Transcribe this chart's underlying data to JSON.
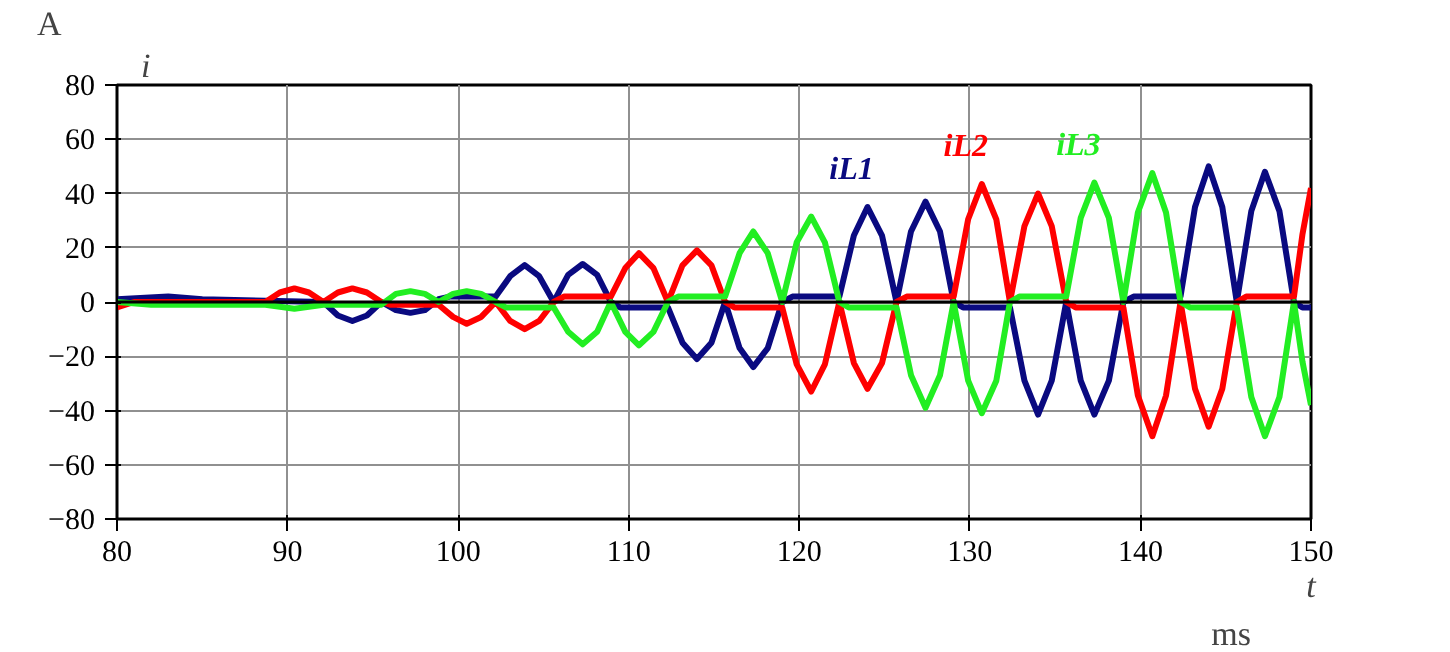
{
  "chart_data": {
    "type": "line",
    "xlabel": "t",
    "ylabel": "i",
    "annotations": [
      "A",
      "ms"
    ],
    "xlim": [
      80,
      150
    ],
    "ylim": [
      -80,
      80
    ],
    "xticks": [
      80,
      90,
      100,
      110,
      120,
      130,
      140,
      150
    ],
    "yticks": [
      -80,
      -60,
      -40,
      -20,
      0,
      20,
      40,
      60,
      80
    ],
    "grid": true,
    "marker": "none",
    "line_style": "solid",
    "ref_lines": [
      {
        "axis": "y",
        "value": 0,
        "color": "#000000"
      }
    ],
    "series": [
      {
        "name": "iL1",
        "color": "#0a0a80",
        "x": [
          80,
          83,
          85,
          92.1,
          92.95,
          93.8,
          94.65,
          95.5,
          96.35,
          97.2,
          98.05,
          98.85,
          99.5,
          102.2,
          103.05,
          103.9,
          104.75,
          105.6,
          106.45,
          107.3,
          108.15,
          108.95,
          109.5,
          112.3,
          113.15,
          114,
          114.85,
          115.65,
          116.5,
          117.3,
          118.15,
          119,
          119.6,
          122.35,
          123.2,
          124,
          124.85,
          125.7,
          126.55,
          127.4,
          128.25,
          129.05,
          129.6,
          132.35,
          133.2,
          134,
          134.8,
          135.65,
          136.5,
          137.3,
          138.15,
          139,
          139.6,
          142.35,
          143.2,
          144,
          144.8,
          145.65,
          146.5,
          147.3,
          148.15,
          149,
          149.5,
          150
        ],
        "values": [
          1,
          2,
          1,
          0,
          -5,
          -7,
          -5,
          0,
          -3,
          -4,
          -3,
          1,
          2,
          2,
          9.5,
          13.6,
          9.5,
          0,
          10,
          14,
          10,
          0,
          -2,
          -2,
          -15,
          -21,
          -15,
          0,
          -17,
          -24,
          -17,
          0,
          2,
          2,
          24.5,
          35,
          24.5,
          0,
          26,
          37,
          26,
          0,
          -2,
          -2,
          -29,
          -41.5,
          -29,
          0,
          -29,
          -41.5,
          -29,
          0,
          2,
          2,
          35,
          50,
          35,
          0,
          33.5,
          48,
          33.5,
          0,
          -2,
          -2
        ]
      },
      {
        "name": "iL2",
        "color": "#ff0000",
        "x": [
          80,
          81,
          88.7,
          89.55,
          90.4,
          91.25,
          92.1,
          92.95,
          93.8,
          94.65,
          95.5,
          96,
          98.85,
          99.7,
          100.5,
          101.35,
          102.2,
          103.05,
          103.9,
          104.75,
          105.6,
          106.2,
          108.95,
          109.8,
          110.6,
          111.45,
          112.3,
          113.15,
          114,
          114.85,
          115.65,
          116.2,
          119,
          119.85,
          120.7,
          121.5,
          122.35,
          123.2,
          124,
          124.85,
          125.7,
          126.3,
          129.05,
          129.9,
          130.7,
          131.55,
          132.35,
          133.2,
          134,
          134.8,
          135.65,
          136.2,
          139,
          139.85,
          140.7,
          141.5,
          142.35,
          143.2,
          144,
          144.8,
          145.65,
          146.2,
          149,
          149.5,
          150
        ],
        "values": [
          -2,
          0,
          0,
          3.5,
          5,
          3.5,
          0,
          3.5,
          5,
          3.5,
          0,
          -1,
          -1,
          -5.5,
          -8,
          -5.5,
          0,
          -7,
          -10,
          -7,
          0,
          2,
          2,
          12.5,
          18,
          12.5,
          0,
          13.5,
          19,
          13.5,
          0,
          -2,
          -2,
          -23,
          -33,
          -23,
          0,
          -22.5,
          -32,
          -22.5,
          0,
          2,
          2,
          30.5,
          43.5,
          30.5,
          0,
          28,
          40,
          28,
          0,
          -2,
          -2,
          -34.5,
          -49.5,
          -34.5,
          0,
          -32,
          -46,
          -32,
          0,
          2,
          2,
          25,
          42
        ]
      },
      {
        "name": "iL3",
        "color": "#22ee22",
        "x": [
          80,
          82,
          88.7,
          90.4,
          92.1,
          95.5,
          96.35,
          97.2,
          98.05,
          98.85,
          99.7,
          100.5,
          101.35,
          102.2,
          102.8,
          105.6,
          106.45,
          107.3,
          108.15,
          108.95,
          109.8,
          110.6,
          111.45,
          112.3,
          112.9,
          115.65,
          116.5,
          117.3,
          118.15,
          119,
          119.85,
          120.7,
          121.5,
          122.35,
          122.9,
          125.7,
          126.55,
          127.4,
          128.25,
          129.05,
          129.9,
          130.7,
          131.55,
          132.35,
          132.9,
          135.65,
          136.5,
          137.3,
          138.15,
          139,
          139.85,
          140.7,
          141.5,
          142.35,
          142.9,
          145.65,
          146.5,
          147.3,
          148.15,
          149,
          149.5,
          150
        ],
        "values": [
          0,
          -1,
          -1,
          -2.5,
          -1,
          -1,
          3,
          4,
          3,
          0,
          3,
          4,
          3,
          0,
          -2,
          -2,
          -11,
          -15.6,
          -11,
          0,
          -11,
          -16,
          -11,
          0,
          2,
          2,
          18,
          26,
          18,
          0,
          22,
          31.5,
          22,
          0,
          -2,
          -2,
          -27,
          -39,
          -27,
          0,
          -29,
          -41,
          -29,
          0,
          2,
          2,
          31,
          44,
          31,
          0,
          33,
          47.5,
          33,
          0,
          -2,
          -2,
          -35,
          -49.5,
          -35,
          0,
          -22,
          -38
        ]
      }
    ]
  }
}
